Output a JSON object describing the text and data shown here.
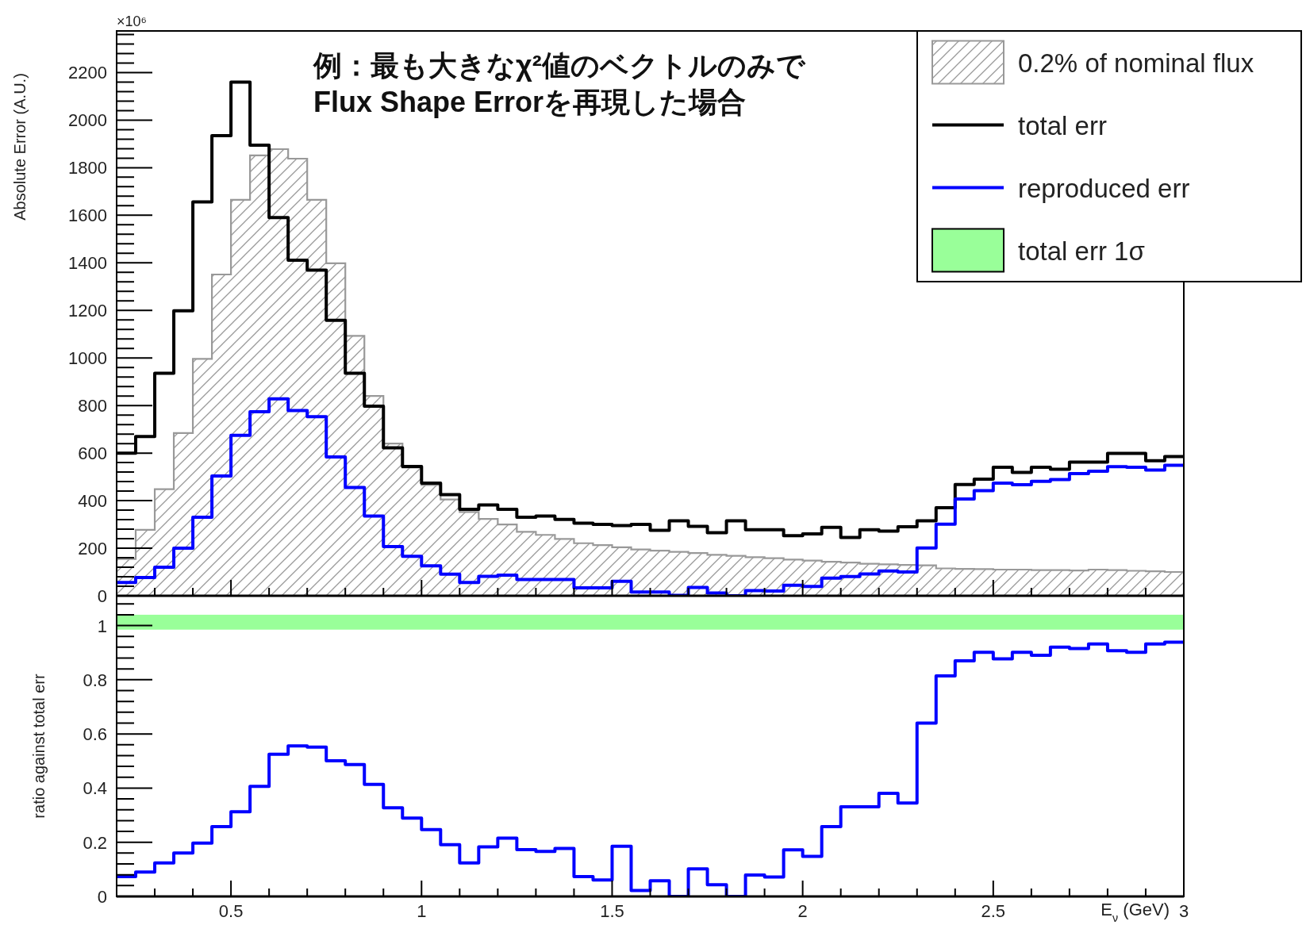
{
  "chart_data": [
    {
      "type": "histogram",
      "ylabel": "Absolute Error (A.U.)",
      "annotations": [
        "×10⁶",
        "例：最も大きなχ²値のベクトルのみで\nFlux Shape Errorを再現した場合"
      ],
      "bins": [
        0.2,
        0.25,
        0.3,
        0.35,
        0.4,
        0.45,
        0.5,
        0.55,
        0.6,
        0.65,
        0.7,
        0.75,
        0.8,
        0.85,
        0.9,
        0.95,
        1.0,
        1.05,
        1.1,
        1.15,
        1.2,
        1.25,
        1.3,
        1.35,
        1.4,
        1.45,
        1.5,
        1.55,
        1.6,
        1.65,
        1.7,
        1.75,
        1.8,
        1.85,
        1.9,
        1.95,
        2.0,
        2.05,
        2.1,
        2.15,
        2.2,
        2.25,
        2.3,
        2.35,
        2.4,
        2.45,
        2.5,
        2.55,
        2.6,
        2.65,
        2.7,
        2.75,
        2.8,
        2.85,
        2.9,
        2.95,
        3.0
      ],
      "xlim": [
        0.2,
        3.0
      ],
      "xticks": [
        0.5,
        1,
        1.5,
        2,
        2.5,
        3
      ],
      "ylim": [
        0,
        2375
      ],
      "yticks": [
        0,
        200,
        400,
        600,
        800,
        1000,
        1200,
        1400,
        1600,
        1800,
        2000,
        2200
      ],
      "tick_labels": "y",
      "legend": "top right",
      "series": [
        {
          "name": "0.2% of nominal flux",
          "color": "#999999",
          "values": [
            155,
            277,
            448,
            684,
            996,
            1351,
            1665,
            1852,
            1878,
            1838,
            1665,
            1398,
            1093,
            840,
            640,
            539,
            466,
            405,
            352,
            323,
            300,
            269,
            256,
            239,
            221,
            213,
            204,
            195,
            190,
            185,
            180,
            172,
            168,
            162,
            158,
            152,
            148,
            143,
            140,
            135,
            132,
            130,
            128,
            115,
            113,
            112,
            110,
            110,
            108,
            108,
            106,
            110,
            108,
            105,
            103,
            100
          ]
        },
        {
          "name": "total err",
          "type": "step",
          "color": "#000000",
          "x": [
            0.2,
            0.25,
            0.3,
            0.35,
            0.4,
            0.45,
            0.5,
            0.55,
            0.6,
            0.65,
            0.7,
            0.75,
            0.8,
            0.85,
            0.9,
            0.95,
            1.0,
            1.05,
            1.1,
            1.15,
            1.2,
            1.25,
            1.3,
            1.35,
            1.4,
            1.45,
            1.5,
            1.55,
            1.6,
            1.65,
            1.7,
            1.75,
            1.8,
            1.85,
            1.9,
            1.95,
            2.0,
            2.05,
            2.1,
            2.15,
            2.2,
            2.25,
            2.3,
            2.35,
            2.4,
            2.45,
            2.5,
            2.55,
            2.6,
            2.65,
            2.7,
            2.75,
            2.8,
            2.85,
            2.9,
            2.95,
            3.0
          ],
          "values": [
            600,
            670,
            936,
            1198,
            1656,
            1935,
            2160,
            1895,
            1590,
            1411,
            1369,
            1158,
            936,
            797,
            622,
            544,
            474,
            425,
            364,
            382,
            364,
            330,
            335,
            321,
            305,
            300,
            295,
            300,
            275,
            315,
            292,
            265,
            315,
            278,
            278,
            253,
            260,
            288,
            245,
            278,
            272,
            290,
            315,
            370,
            468,
            490,
            540,
            519,
            540,
            532,
            562,
            562,
            599,
            599,
            568,
            585,
            585
          ]
        },
        {
          "name": "reproduced err",
          "type": "step",
          "color": "#0000ff",
          "x": [
            0.2,
            0.25,
            0.3,
            0.35,
            0.4,
            0.45,
            0.5,
            0.55,
            0.6,
            0.65,
            0.7,
            0.75,
            0.8,
            0.85,
            0.9,
            0.95,
            1.0,
            1.05,
            1.1,
            1.15,
            1.2,
            1.25,
            1.3,
            1.35,
            1.4,
            1.45,
            1.5,
            1.55,
            1.6,
            1.65,
            1.7,
            1.75,
            1.8,
            1.85,
            1.9,
            1.95,
            2.0,
            2.05,
            2.1,
            2.15,
            2.2,
            2.25,
            2.3,
            2.35,
            2.4,
            2.45,
            2.5,
            2.55,
            2.6,
            2.65,
            2.7,
            2.75,
            2.8,
            2.85,
            2.9,
            2.95,
            3.0
          ],
          "values": [
            56,
            77,
            120,
            200,
            330,
            504,
            675,
            774,
            828,
            779,
            753,
            584,
            455,
            335,
            207,
            166,
            126,
            91,
            56,
            82,
            87,
            68,
            68,
            68,
            33,
            33,
            61,
            16,
            16,
            2,
            35,
            12,
            0,
            22,
            20,
            44,
            39,
            74,
            81,
            92,
            104,
            100,
            201,
            301,
            407,
            442,
            474,
            467,
            481,
            489,
            514,
            524,
            543,
            540,
            529,
            549,
            549
          ]
        }
      ]
    },
    {
      "type": "step",
      "ylabel": "ratio against total err",
      "xlabel": "E$_{ν}$ (GeV)",
      "x": [
        0.2,
        0.25,
        0.3,
        0.35,
        0.4,
        0.45,
        0.5,
        0.55,
        0.6,
        0.65,
        0.7,
        0.75,
        0.8,
        0.85,
        0.9,
        0.95,
        1.0,
        1.05,
        1.1,
        1.15,
        1.2,
        1.25,
        1.3,
        1.35,
        1.4,
        1.45,
        1.5,
        1.55,
        1.6,
        1.65,
        1.7,
        1.75,
        1.8,
        1.85,
        1.9,
        1.95,
        2.0,
        2.05,
        2.1,
        2.15,
        2.2,
        2.25,
        2.3,
        2.35,
        2.4,
        2.45,
        2.5,
        2.55,
        2.6,
        2.65,
        2.7,
        2.75,
        2.8,
        2.85,
        2.9,
        2.95,
        3.0
      ],
      "xlim": [
        0.2,
        3.0
      ],
      "xticks": [
        0.5,
        1,
        1.5,
        2,
        2.5,
        3
      ],
      "ylim": [
        0,
        1.11
      ],
      "yticks": [
        0,
        0.2,
        0.4,
        0.6,
        0.8,
        1
      ],
      "bands": [
        {
          "axis": "y",
          "from": 0.985,
          "to": 1.04,
          "label": "total err 1σ",
          "color": "#99ff99"
        }
      ],
      "series": [
        {
          "color": "#0000ff",
          "values": [
            0.073,
            0.09,
            0.124,
            0.16,
            0.197,
            0.258,
            0.313,
            0.406,
            0.525,
            0.556,
            0.551,
            0.501,
            0.487,
            0.414,
            0.327,
            0.289,
            0.247,
            0.191,
            0.124,
            0.183,
            0.215,
            0.173,
            0.166,
            0.177,
            0.073,
            0.061,
            0.185,
            0.022,
            0.058,
            0,
            0.102,
            0.043,
            0,
            0.079,
            0.072,
            0.172,
            0.148,
            0.258,
            0.331,
            0.331,
            0.381,
            0.345,
            0.64,
            0.814,
            0.87,
            0.901,
            0.877,
            0.901,
            0.89,
            0.92,
            0.915,
            0.932,
            0.907,
            0.901,
            0.932,
            0.939,
            0.939
          ]
        }
      ]
    }
  ]
}
